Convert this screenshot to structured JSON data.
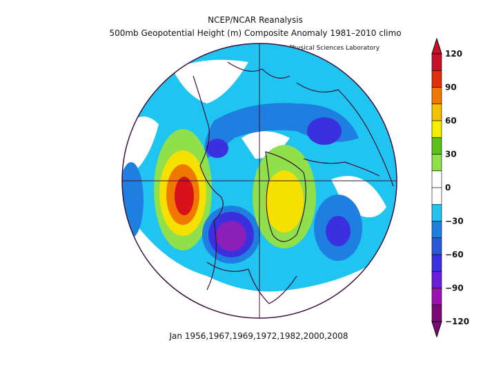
{
  "title": {
    "line1": "NCEP/NCAR Reanalysis",
    "line2": "500mb Geopotential Height (m) Composite Anomaly 1981–2010 climo",
    "credit": "NOAA Physical Sciences Laboratory"
  },
  "footer": "Jan 1956,1967,1969,1972,1982,2000,2008",
  "colorbar": {
    "levels": [
      {
        "label": "120",
        "color": "#d7301f"
      },
      {
        "label": "90",
        "color": "#f08c00"
      },
      {
        "label": "60",
        "color": "#f5e000"
      },
      {
        "label": "30",
        "color": "#7ed321"
      },
      {
        "label": "0",
        "color": "#ffffff"
      },
      {
        "label": "−30",
        "color": "#1a6fd0"
      },
      {
        "label": "−60",
        "color": "#3b2bd0"
      },
      {
        "label": "−90",
        "color": "#8b1fb8"
      },
      {
        "label": "−120",
        "color": "#5a0a4a"
      }
    ],
    "segments": [
      "#7a0a78",
      "#9a12b0",
      "#6a1fd8",
      "#3a30e0",
      "#2b5ad8",
      "#1f7fe0",
      "#20c4f0",
      "#ffffff",
      "#ffffff",
      "#8fe04a",
      "#5cc21a",
      "#f5f000",
      "#f5c000",
      "#f07800",
      "#e03010",
      "#c8102a"
    ]
  },
  "map_colors": {
    "background": "#20c4f0",
    "neutral": "#ffffff",
    "coast": "#3a0f3a"
  }
}
